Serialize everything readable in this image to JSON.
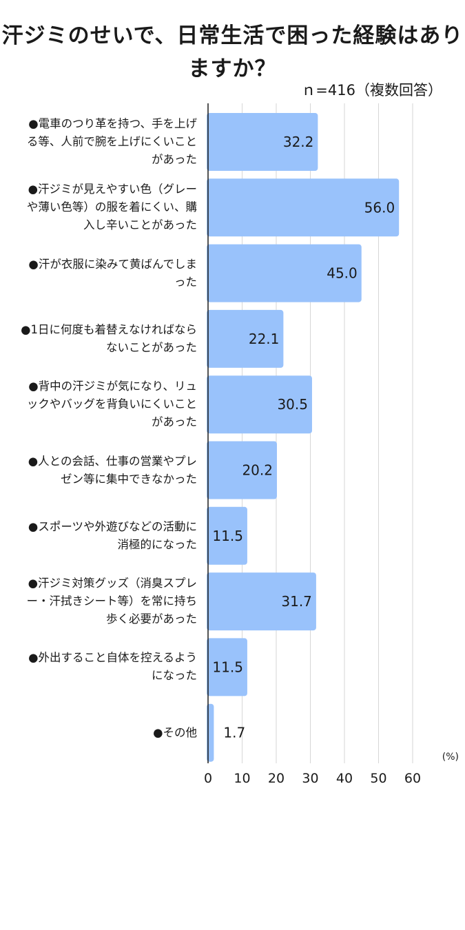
{
  "chart_data": {
    "type": "bar",
    "orientation": "horizontal",
    "title": "汗ジミのせいで、日常生活で困った経験はありますか？",
    "subtitle": "ｎ=416（複数回答）",
    "unit_label": "(%)",
    "xlim": [
      0,
      60
    ],
    "x_ticks": [
      "0",
      "10",
      "20",
      "30",
      "40",
      "50",
      "60"
    ],
    "grid": "vertical",
    "categories": [
      "●電車のつり革を持つ、手を上げる等、人前で腕を上げにくいことがあった",
      "●汗ジミが見えやすい色（グレーや薄い色等）の服を着にくい、購入し辛いことがあった",
      "●汗が衣服に染みて黄ばんでしまった",
      "●1日に何度も着替えなければならないことがあった",
      "●背中の汗ジミが気になり、リュックやバッグを背負いにくいことがあった",
      "●人との会話、仕事の営業やプレゼン等に集中できなかった",
      "●スポーツや外遊びなどの活動に消極的になった",
      "●汗ジミ対策グッズ（消臭スプレー・汗拭きシート等）を常に持ち歩く必要があった",
      "●外出すること自体を控えるようになった",
      "●その他"
    ],
    "values": [
      32.2,
      56.0,
      45.0,
      22.1,
      30.5,
      20.2,
      11.5,
      31.7,
      11.5,
      1.7
    ],
    "value_labels": [
      "32.2",
      "56.0",
      "45.0",
      "22.1",
      "30.5",
      "20.2",
      "11.5",
      "31.7",
      "11.5",
      "1.7"
    ],
    "colors": {
      "bar": "#99c2fb",
      "grid": "#d6d6d6",
      "axis": "#1a1a1a"
    }
  }
}
